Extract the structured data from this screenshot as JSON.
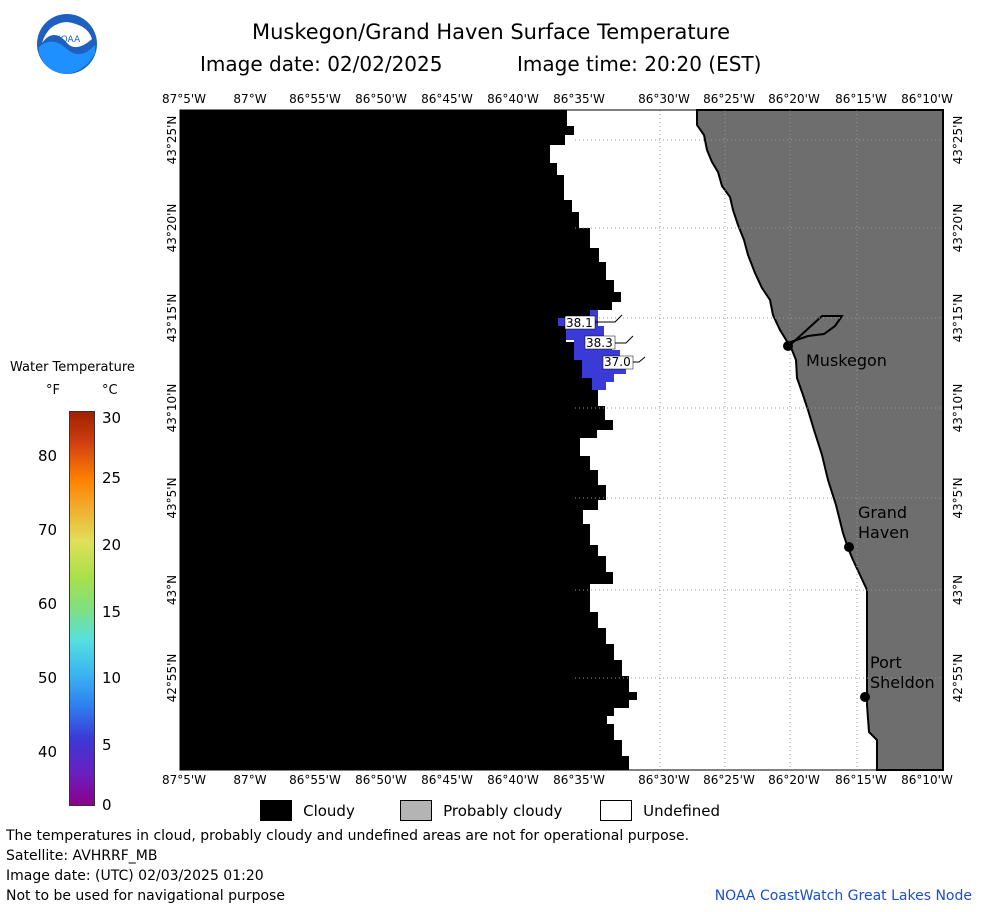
{
  "header": {
    "title": "Muskegon/Grand Haven Surface Temperature",
    "date_line": "Image date: 02/02/2025",
    "time_line": "Image time: 20:20 (EST)"
  },
  "logo": {
    "text": "NOAA"
  },
  "map": {
    "lon_labels": [
      "87°5'W",
      "87°W",
      "86°55'W",
      "86°50'W",
      "86°45'W",
      "86°40'W",
      "86°35'W",
      "86°30'W",
      "86°25'W",
      "86°20'W",
      "86°15'W",
      "86°10'W"
    ],
    "lat_labels": [
      "43°25'N",
      "43°20'N",
      "43°15'N",
      "43°10'N",
      "43°5'N",
      "43°N",
      "42°55'N"
    ],
    "cities": [
      {
        "name": "Muskegon",
        "lines": [
          "Muskegon"
        ]
      },
      {
        "name": "Grand Haven",
        "lines": [
          "Grand",
          "Haven"
        ]
      },
      {
        "name": "Port Sheldon",
        "lines": [
          "Port",
          "Sheldon"
        ]
      }
    ],
    "temperature_labels": [
      "38.1",
      "38.3",
      "37.0"
    ],
    "colors": {
      "cloudy": "#000000",
      "land": "#6e6e6e",
      "water_undefined": "#ffffff",
      "temp_water": "#3a3ad6"
    }
  },
  "colorbar": {
    "title": "Water Temperature",
    "unit_f": "°F",
    "unit_c": "°C",
    "f_ticks": [
      "80",
      "70",
      "60",
      "50",
      "40"
    ],
    "c_ticks": [
      "30",
      "25",
      "20",
      "15",
      "10",
      "5",
      "0"
    ],
    "range_c": [
      0,
      30
    ]
  },
  "legend": {
    "items": [
      {
        "label": "Cloudy",
        "color": "#000000"
      },
      {
        "label": "Probably cloudy",
        "color": "#b4b4b4"
      },
      {
        "label": "Undefined",
        "color": "#ffffff"
      }
    ]
  },
  "footer": {
    "line1": "The temperatures in cloud, probably cloudy and undefined areas are not for operational purpose.",
    "line2": "Satellite: AVHRRF_MB",
    "line3": "Image date: (UTC) 02/03/2025  01:20",
    "line4": "Not to be used for navigational purpose",
    "credit": "NOAA CoastWatch Great Lakes Node"
  }
}
